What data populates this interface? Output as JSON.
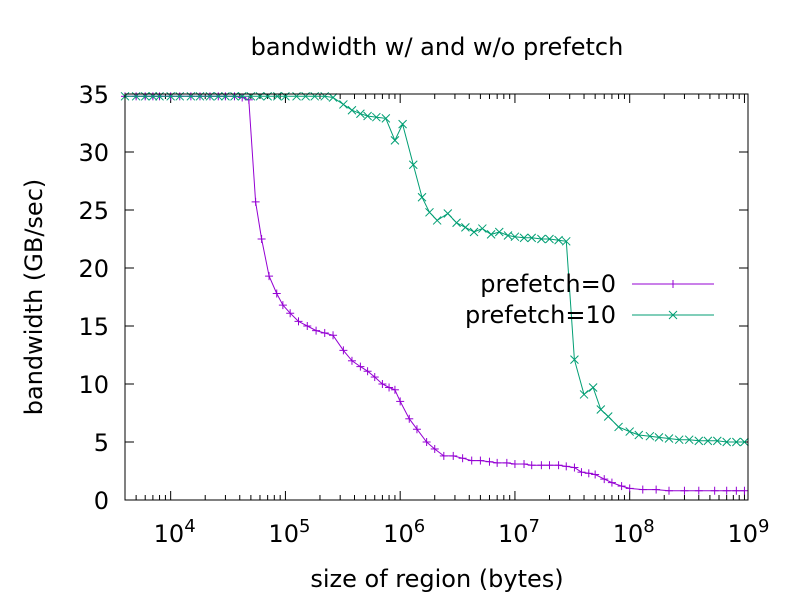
{
  "chart_data": {
    "type": "line",
    "title": "bandwidth w/ and w/o prefetch",
    "xlabel": "size of region (bytes)",
    "ylabel": "bandwidth (GB/sec)",
    "xscale": "log",
    "xlim": [
      4000,
      1073741824
    ],
    "ylim": [
      0,
      35
    ],
    "grid": false,
    "legend_position": "right-middle",
    "x_ticks": [
      {
        "value": 10000,
        "base": "10",
        "exp": "4"
      },
      {
        "value": 100000,
        "base": "10",
        "exp": "5"
      },
      {
        "value": 1000000,
        "base": "10",
        "exp": "6"
      },
      {
        "value": 10000000,
        "base": "10",
        "exp": "7"
      },
      {
        "value": 100000000,
        "base": "10",
        "exp": "8"
      },
      {
        "value": 1000000000,
        "base": "10",
        "exp": "9"
      }
    ],
    "y_ticks": [
      0,
      5,
      10,
      15,
      20,
      25,
      30,
      35
    ],
    "series": [
      {
        "name": "prefetch=0",
        "color": "#9400d3",
        "marker": "plus",
        "points": [
          [
            4000,
            34.8
          ],
          [
            5000,
            34.8
          ],
          [
            6000,
            34.8
          ],
          [
            7000,
            34.8
          ],
          [
            8000,
            34.8
          ],
          [
            10000,
            34.8
          ],
          [
            12000,
            34.8
          ],
          [
            15000,
            34.8
          ],
          [
            18000,
            34.8
          ],
          [
            22000,
            34.8
          ],
          [
            26000,
            34.8
          ],
          [
            30000,
            34.8
          ],
          [
            36000,
            34.8
          ],
          [
            42000,
            34.7
          ],
          [
            48000,
            34.5
          ],
          [
            55000,
            25.7
          ],
          [
            62000,
            22.5
          ],
          [
            72000,
            19.3
          ],
          [
            84000,
            17.8
          ],
          [
            95000,
            16.8
          ],
          [
            110000,
            16.1
          ],
          [
            130000,
            15.4
          ],
          [
            155000,
            15.0
          ],
          [
            185000,
            14.6
          ],
          [
            220000,
            14.4
          ],
          [
            260000,
            14.2
          ],
          [
            320000,
            12.9
          ],
          [
            380000,
            12.0
          ],
          [
            450000,
            11.5
          ],
          [
            520000,
            11.1
          ],
          [
            600000,
            10.6
          ],
          [
            700000,
            10.0
          ],
          [
            800000,
            9.7
          ],
          [
            900000,
            9.5
          ],
          [
            1000000,
            8.5
          ],
          [
            1200000,
            7.0
          ],
          [
            1400000,
            6.1
          ],
          [
            1700000,
            5.0
          ],
          [
            2000000,
            4.4
          ],
          [
            2400000,
            3.8
          ],
          [
            2900000,
            3.8
          ],
          [
            3500000,
            3.6
          ],
          [
            4200000,
            3.4
          ],
          [
            5000000,
            3.4
          ],
          [
            6000000,
            3.3
          ],
          [
            7000000,
            3.2
          ],
          [
            8500000,
            3.2
          ],
          [
            10000000,
            3.1
          ],
          [
            12000000,
            3.1
          ],
          [
            14000000,
            3.0
          ],
          [
            17000000,
            3.0
          ],
          [
            20000000,
            3.0
          ],
          [
            24000000,
            3.0
          ],
          [
            28000000,
            2.9
          ],
          [
            33000000,
            2.8
          ],
          [
            38000000,
            2.4
          ],
          [
            44000000,
            2.3
          ],
          [
            50000000,
            2.2
          ],
          [
            60000000,
            1.8
          ],
          [
            70000000,
            1.5
          ],
          [
            85000000,
            1.2
          ],
          [
            100000000,
            1.0
          ],
          [
            130000000,
            0.9
          ],
          [
            170000000,
            0.9
          ],
          [
            220000000,
            0.8
          ],
          [
            300000000,
            0.8
          ],
          [
            400000000,
            0.8
          ],
          [
            550000000,
            0.8
          ],
          [
            700000000,
            0.8
          ],
          [
            850000000,
            0.8
          ],
          [
            1000000000,
            0.8
          ]
        ]
      },
      {
        "name": "prefetch=10",
        "color": "#009e73",
        "marker": "cross",
        "points": [
          [
            4000,
            34.8
          ],
          [
            5000,
            34.8
          ],
          [
            6000,
            34.8
          ],
          [
            7000,
            34.8
          ],
          [
            8000,
            34.8
          ],
          [
            10000,
            34.8
          ],
          [
            12000,
            34.8
          ],
          [
            15000,
            34.8
          ],
          [
            18000,
            34.8
          ],
          [
            22000,
            34.8
          ],
          [
            26000,
            34.8
          ],
          [
            30000,
            34.8
          ],
          [
            36000,
            34.8
          ],
          [
            42000,
            34.8
          ],
          [
            50000,
            34.8
          ],
          [
            60000,
            34.8
          ],
          [
            70000,
            34.8
          ],
          [
            85000,
            34.8
          ],
          [
            100000,
            34.8
          ],
          [
            125000,
            34.8
          ],
          [
            150000,
            34.8
          ],
          [
            180000,
            34.8
          ],
          [
            220000,
            34.8
          ],
          [
            260000,
            34.7
          ],
          [
            320000,
            34.1
          ],
          [
            380000,
            33.6
          ],
          [
            450000,
            33.3
          ],
          [
            520000,
            33.1
          ],
          [
            620000,
            33.0
          ],
          [
            750000,
            32.9
          ],
          [
            900000,
            31.0
          ],
          [
            1050000,
            32.4
          ],
          [
            1300000,
            28.9
          ],
          [
            1550000,
            26.1
          ],
          [
            1800000,
            24.8
          ],
          [
            2100000,
            24.1
          ],
          [
            2600000,
            24.7
          ],
          [
            3100000,
            23.9
          ],
          [
            3700000,
            23.5
          ],
          [
            4400000,
            23.1
          ],
          [
            5200000,
            23.4
          ],
          [
            6200000,
            22.9
          ],
          [
            7300000,
            23.1
          ],
          [
            8700000,
            22.8
          ],
          [
            10000000,
            22.7
          ],
          [
            12000000,
            22.6
          ],
          [
            14000000,
            22.6
          ],
          [
            17000000,
            22.5
          ],
          [
            20000000,
            22.5
          ],
          [
            24000000,
            22.4
          ],
          [
            28000000,
            22.3
          ],
          [
            33000000,
            12.1
          ],
          [
            40000000,
            9.1
          ],
          [
            48000000,
            9.7
          ],
          [
            56000000,
            7.8
          ],
          [
            65000000,
            7.2
          ],
          [
            80000000,
            6.3
          ],
          [
            100000000,
            5.9
          ],
          [
            120000000,
            5.6
          ],
          [
            150000000,
            5.5
          ],
          [
            180000000,
            5.4
          ],
          [
            220000000,
            5.3
          ],
          [
            270000000,
            5.2
          ],
          [
            330000000,
            5.2
          ],
          [
            400000000,
            5.1
          ],
          [
            480000000,
            5.1
          ],
          [
            580000000,
            5.1
          ],
          [
            700000000,
            5.0
          ],
          [
            850000000,
            5.0
          ],
          [
            1000000000,
            5.0
          ]
        ]
      }
    ]
  }
}
